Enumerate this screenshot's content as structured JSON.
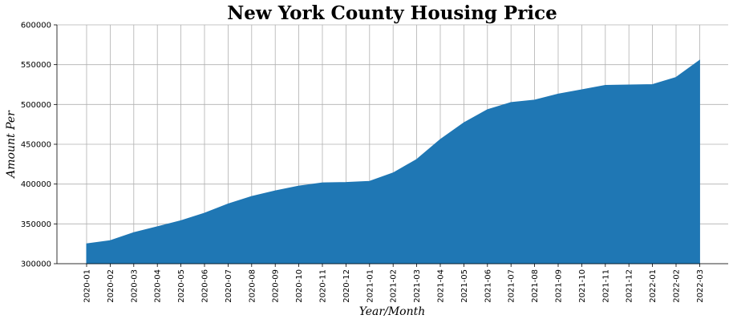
{
  "chart_data": {
    "type": "area",
    "title": "New York County Housing Price",
    "xlabel": "Year/Month",
    "ylabel": "Amount Per",
    "categories": [
      "2020-01",
      "2020-02",
      "2020-03",
      "2020-04",
      "2020-05",
      "2020-06",
      "2020-07",
      "2020-08",
      "2020-09",
      "2020-10",
      "2020-11",
      "2020-12",
      "2021-01",
      "2021-02",
      "2021-03",
      "2021-04",
      "2021-05",
      "2021-06",
      "2021-07",
      "2021-08",
      "2021-09",
      "2021-10",
      "2021-11",
      "2021-12",
      "2022-01",
      "2022-02",
      "2022-03"
    ],
    "values": [
      325000,
      329000,
      339000,
      346500,
      354000,
      363500,
      375000,
      384500,
      391500,
      397500,
      401500,
      402000,
      403500,
      414000,
      431000,
      456000,
      477000,
      493500,
      502500,
      505500,
      513000,
      518500,
      524000,
      524500,
      525000,
      534000,
      555500
    ],
    "ylim": [
      300000,
      600000
    ],
    "yticks": [
      300000,
      350000,
      400000,
      450000,
      500000,
      550000,
      600000
    ],
    "grid": true,
    "fill_color": "#1f77b4",
    "grid_color": "#b0b0b0"
  }
}
